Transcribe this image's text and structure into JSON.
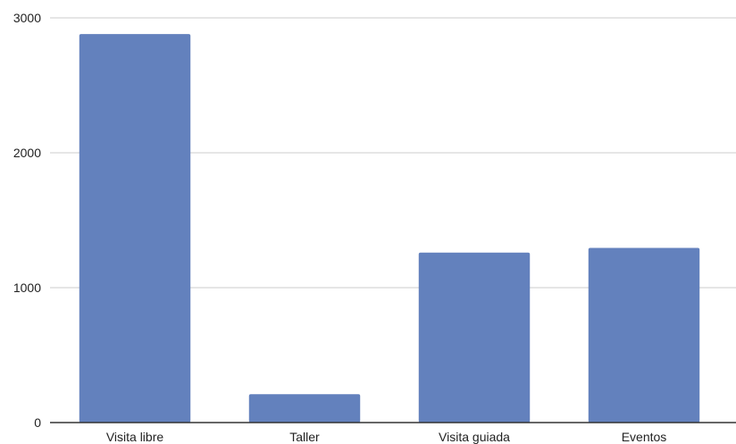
{
  "chart_data": {
    "type": "bar",
    "title": "",
    "xlabel": "",
    "ylabel": "",
    "categories": [
      "Visita libre",
      "Taller",
      "Visita guiada",
      "Eventos"
    ],
    "values": [
      2880,
      210,
      1260,
      1295
    ],
    "ylim": [
      0,
      3000
    ],
    "yticks": [
      0,
      1000,
      2000,
      3000
    ],
    "grid": true,
    "legend": "none",
    "colors": {
      "bar": "#6381bd",
      "grid": "#cccccc",
      "axis": "#333333"
    }
  }
}
